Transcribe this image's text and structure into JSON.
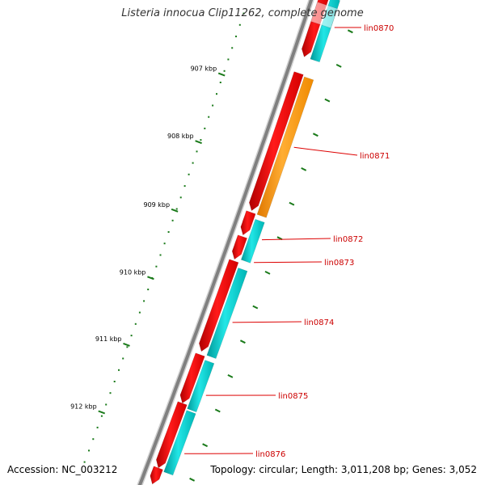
{
  "title": "Listeria innocua Clip11262, complete genome",
  "accession": "Accession: NC_003212",
  "topology": "Topology: circular; Length: 3,011,208 bp; Genes: 3,052",
  "colors": {
    "backbone": "#808080",
    "tick": "#1a7a1a",
    "gene_forward": "#ff0000",
    "gene_reverse": "#00d0d0",
    "gene_highlight": "#ff9900",
    "label": "#cc0000",
    "leader": "#dd0000"
  },
  "scale": {
    "ticks": [
      {
        "label": "907 kbp"
      },
      {
        "label": "908 kbp"
      },
      {
        "label": "909 kbp"
      },
      {
        "label": "910 kbp"
      },
      {
        "label": "911 kbp"
      },
      {
        "label": "912 kbp"
      }
    ]
  },
  "genes": [
    {
      "label": "lin0870",
      "strand": "forward"
    },
    {
      "label": "lin0871",
      "strand": "reverse",
      "highlight": true
    },
    {
      "label": "lin0872",
      "strand": "reverse"
    },
    {
      "label": "lin0873",
      "strand": "reverse"
    },
    {
      "label": "lin0874",
      "strand": "reverse"
    },
    {
      "label": "lin0875",
      "strand": "reverse"
    },
    {
      "label": "lin0876",
      "strand": "reverse"
    }
  ]
}
